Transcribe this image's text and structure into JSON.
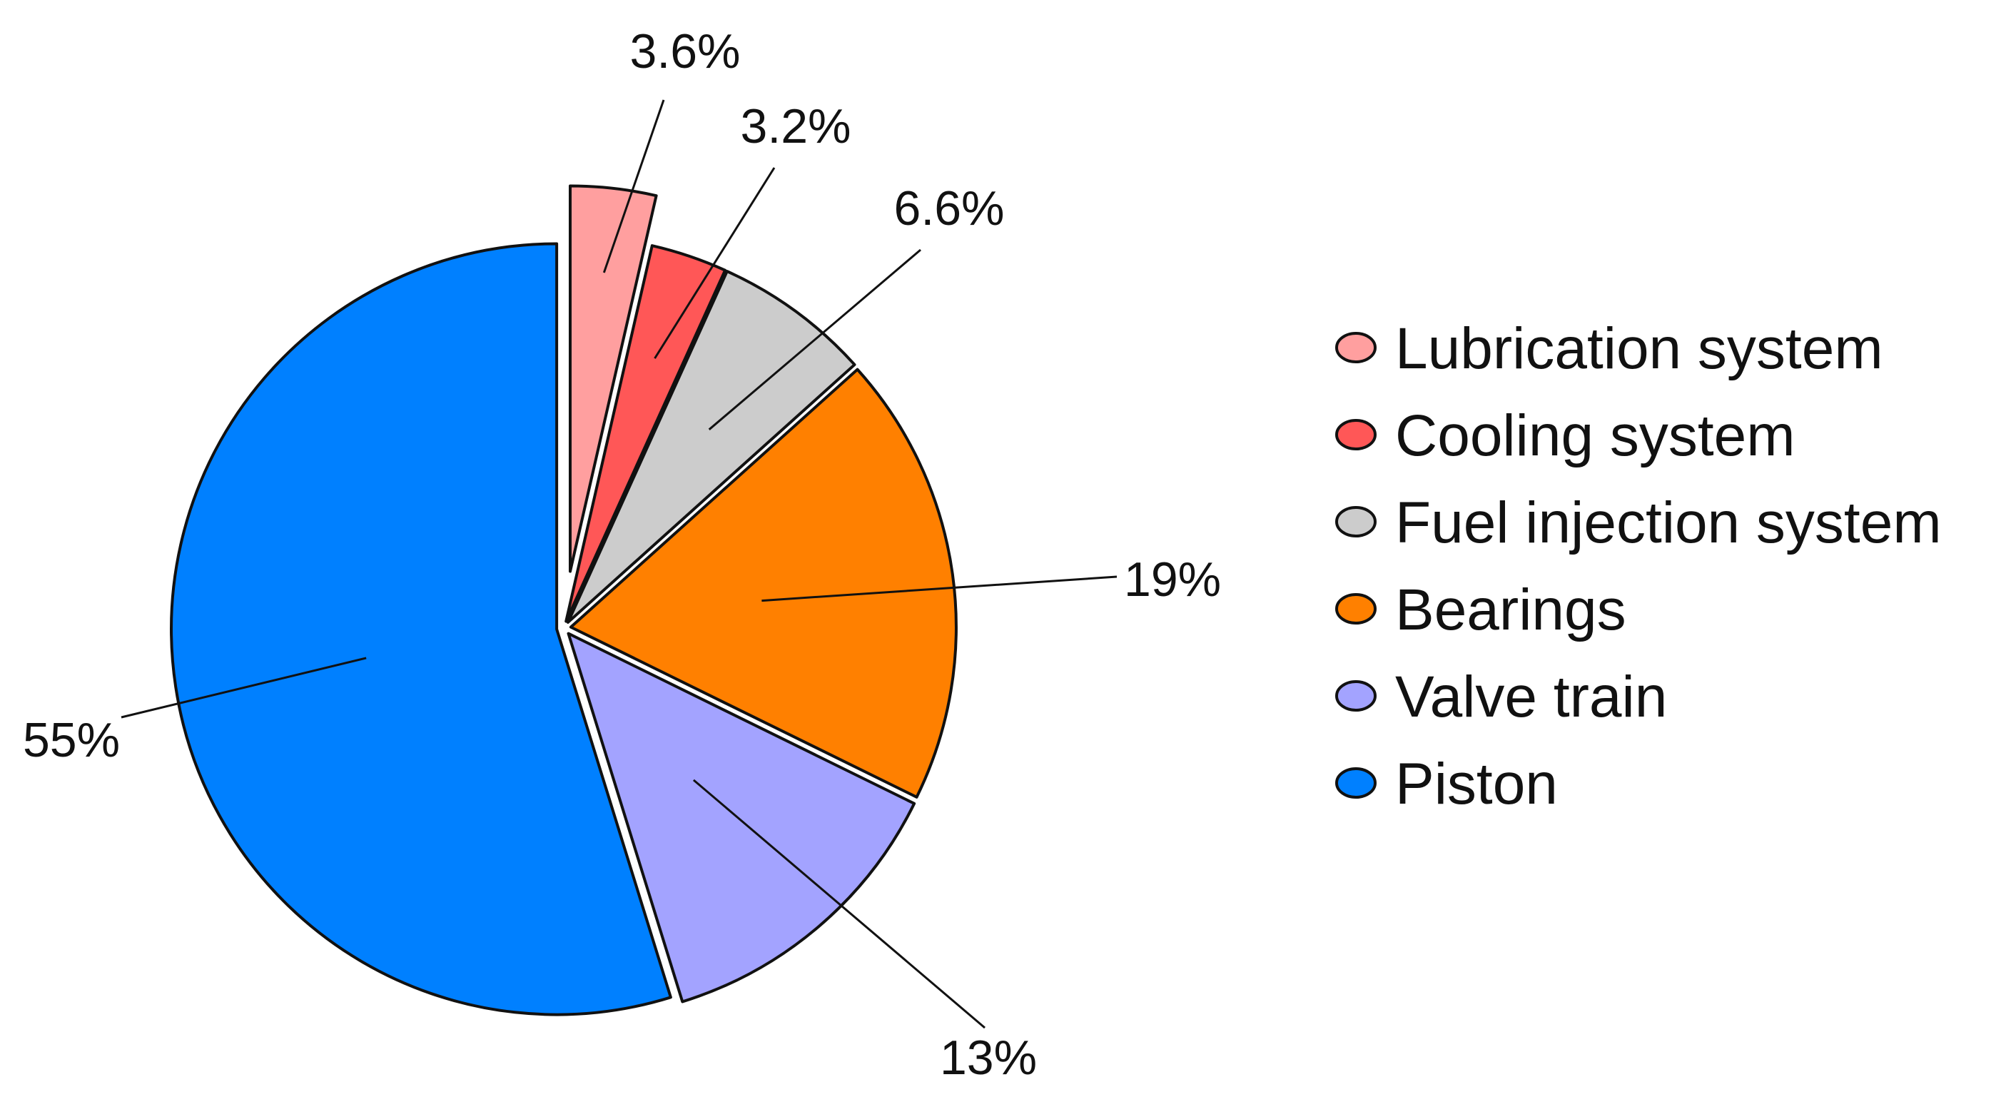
{
  "chart_data": {
    "type": "pie",
    "title": "",
    "unit": "%",
    "legend_position": "right",
    "slices": [
      {
        "name": "Lubrication system",
        "value": 3.6,
        "label": "3.6%",
        "color": "#FF9F9F",
        "exploded": true
      },
      {
        "name": "Cooling system",
        "value": 3.2,
        "label": "3.2%",
        "color": "#FF5757",
        "exploded": false
      },
      {
        "name": "Fuel injection system",
        "value": 6.6,
        "label": "6.6%",
        "color": "#CCCCCC",
        "exploded": false
      },
      {
        "name": "Bearings",
        "value": 19,
        "label": "19%",
        "color": "#FF8000",
        "exploded": false
      },
      {
        "name": "Valve train",
        "value": 13,
        "label": "13%",
        "color": "#A3A3FF",
        "exploded": false
      },
      {
        "name": "Piston",
        "value": 55,
        "label": "55%",
        "color": "#0080FF",
        "exploded": false
      }
    ]
  }
}
